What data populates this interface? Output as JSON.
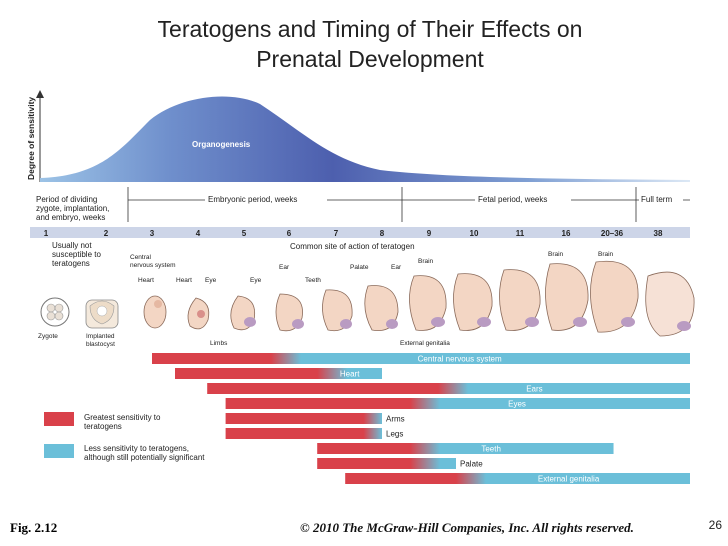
{
  "title": {
    "line1": "Teratogens and Timing of Their Effects on",
    "line2": "Prenatal Development"
  },
  "curve": {
    "ylabel": "Degree of sensitivity",
    "peak_label": "Organogenesis"
  },
  "periods": {
    "dividing": [
      "Period of dividing",
      "zygote, implantation,",
      "and embryo, weeks"
    ],
    "embryonic": "Embryonic period, weeks",
    "fetal": "Fetal period, weeks",
    "full_term": "Full term"
  },
  "weeks": [
    "1",
    "2",
    "3",
    "4",
    "5",
    "6",
    "7",
    "8",
    "9",
    "10",
    "11",
    "16",
    "20–36",
    "38"
  ],
  "not_susceptible": [
    "Usually not",
    "susceptible to",
    "teratogens"
  ],
  "common_site": "Common site of action of teratogen",
  "stage_labels": {
    "cns": [
      "Central",
      "nervous system"
    ],
    "heart1": "Heart",
    "heart2": "Heart",
    "eye1": "Eye",
    "eye2": "Eye",
    "ear1": "Ear",
    "teeth": "Teeth",
    "palate": "Palate",
    "ear2": "Ear",
    "brain1": "Brain",
    "brain2": "Brain",
    "brain3": "Brain",
    "limbs": "Limbs",
    "ext_genitalia": "External genitalia",
    "zygote": "Zygote",
    "blastocyst": [
      "Implanted",
      "blastocyst"
    ]
  },
  "sensitivity_bars": [
    {
      "label": "Central nervous system",
      "start": 3,
      "high_end": 5.6,
      "end": 38
    },
    {
      "label": "Heart",
      "start": 3.5,
      "high_end": 6.6,
      "end": 8
    },
    {
      "label": "Ears",
      "start": 4.2,
      "high_end": 9.2,
      "end": 38
    },
    {
      "label": "Eyes",
      "start": 4.6,
      "high_end": 8.6,
      "end": 38
    },
    {
      "label": "Arms",
      "start": 4.6,
      "high_end": 7.6,
      "end": 8
    },
    {
      "label": "Legs",
      "start": 4.6,
      "high_end": 7.6,
      "end": 8
    },
    {
      "label": "Teeth",
      "start": 6.6,
      "high_end": 8.6,
      "end": 20.6
    },
    {
      "label": "Palate",
      "start": 6.6,
      "high_end": 8.6,
      "end": 9.6
    },
    {
      "label": "External genitalia",
      "start": 7.2,
      "high_end": 9.6,
      "end": 38
    }
  ],
  "legend": {
    "high": [
      "Greatest sensitivity to",
      "teratogens"
    ],
    "low": [
      "Less sensitivity to teratogens,",
      "although still potentially significant"
    ]
  },
  "colors": {
    "high": "#d9414a",
    "low": "#6bbfd9",
    "curve_start": "#8db8e0",
    "curve_peak": "#4d5fae",
    "weeks_band": "#cdd5e8"
  },
  "footer": {
    "figure": "Fig. 2.12",
    "copyright": "© 2010 The McGraw-Hill Companies, Inc. All rights reserved.",
    "slide_number": "26"
  }
}
